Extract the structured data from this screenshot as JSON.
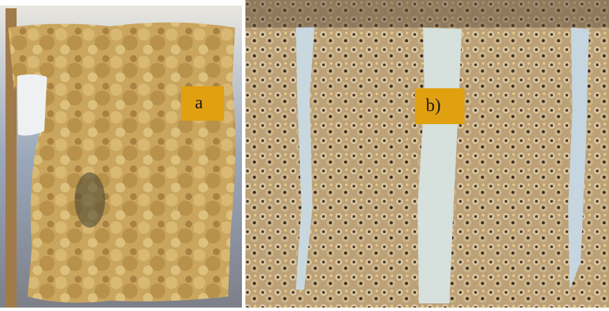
{
  "panels": [
    {
      "label": "a"
    },
    {
      "label": "b)"
    }
  ]
}
